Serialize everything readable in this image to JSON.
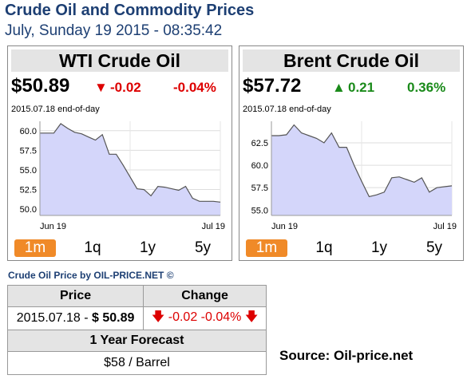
{
  "header": {
    "title": "Crude Oil and Commodity Prices",
    "datetime": "July, Sunday 19 2015 - 08:35:42"
  },
  "panels": [
    {
      "title": "WTI Crude Oil",
      "price": "$50.89",
      "change": "-0.02",
      "change_pct": "-0.04%",
      "direction": "down",
      "eod": "2015.07.18 end-of-day",
      "buttons": [
        "1m",
        "1q",
        "1y",
        "5y"
      ],
      "active_button": "1m"
    },
    {
      "title": "Brent Crude Oil",
      "price": "$57.72",
      "change": "0.21",
      "change_pct": "0.36%",
      "direction": "up",
      "eod": "2015.07.18 end-of-day",
      "buttons": [
        "1m",
        "1q",
        "1y",
        "5y"
      ],
      "active_button": "1m"
    }
  ],
  "colors": {
    "title_blue": "#1d3f73",
    "negative": "#dd1111",
    "positive": "#1a8a1a",
    "active_button": "#f08a28",
    "area_fill": "#d4d6fa",
    "line": "#555555"
  },
  "chart_data": [
    {
      "type": "area",
      "series": [
        {
          "values": [
            59.7,
            59.7,
            59.7,
            60.9,
            60.3,
            59.8,
            59.6,
            59.2,
            58.8,
            59.5,
            57.0,
            57.0,
            55.6,
            54.1,
            52.6,
            52.5,
            51.7,
            52.9,
            52.8,
            52.6,
            52.4,
            52.9,
            51.4,
            51.0,
            51.0,
            51.0,
            50.9
          ]
        }
      ],
      "x_tick_labels": [
        "Jun 19",
        "Jul 19"
      ],
      "y_ticks": [
        50.0,
        52.5,
        55.0,
        57.5,
        60.0
      ],
      "ylim": [
        49.2,
        61.2
      ],
      "grid": true
    },
    {
      "type": "area",
      "series": [
        {
          "values": [
            63.3,
            63.3,
            63.4,
            64.5,
            63.6,
            63.3,
            63.0,
            62.5,
            63.6,
            62.0,
            62.0,
            60.0,
            58.2,
            56.5,
            56.7,
            57.0,
            58.6,
            58.7,
            58.4,
            58.1,
            58.6,
            57.0,
            57.5,
            57.6,
            57.7
          ]
        }
      ],
      "x_tick_labels": [
        "Jun 19",
        "Jul 19"
      ],
      "y_ticks": [
        55.0,
        57.5,
        60.0,
        62.5
      ],
      "ylim": [
        54.4,
        64.9
      ],
      "grid": true
    }
  ],
  "subcaption": "Crude Oil Price by OIL-PRICE.NET ©",
  "table": {
    "headers": [
      "Price",
      "Change"
    ],
    "row_date": "2015.07.18",
    "row_sep": " - ",
    "row_price": "$ 50.89",
    "row_change": "-0.02",
    "row_change_pct": "-0.04%",
    "forecast_header": "1 Year Forecast",
    "forecast_value": "$58 / Barrel"
  },
  "source": "Source: Oil-price.net"
}
